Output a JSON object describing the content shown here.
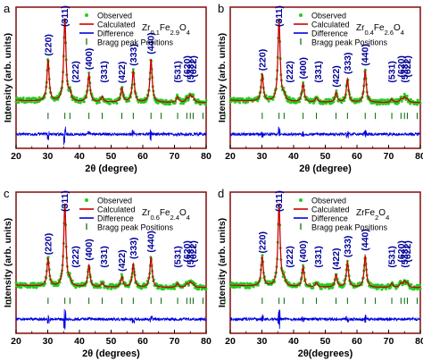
{
  "colors": {
    "frame": "#8b1a1a",
    "observed": "#22cc22",
    "calculated": "#cc0000",
    "difference": "#0000dd",
    "bragg": "#006600",
    "text": "#000000",
    "hkl": "#000099"
  },
  "legend_labels": [
    "Observed",
    "Calculated",
    "Difference",
    "Bragg peak Positions"
  ],
  "hkl_labels": [
    "(220)",
    "(311)",
    "(222)",
    "(400)",
    "(331)",
    "(422)",
    "(333)",
    "(440)",
    "(531)",
    "(620)",
    "(533)",
    "(622)"
  ],
  "chart_data": [
    {
      "type": "line",
      "panel_letter": "a",
      "title": "Zr0.1Fe2.9O4",
      "formula": {
        "zr": "0.1",
        "fe": "2.9",
        "o": "4"
      },
      "xlabel": "2θ (degree)",
      "ylabel": "Intensity (arb. units)",
      "xlim": [
        20,
        80
      ],
      "xticks": [
        20,
        30,
        40,
        50,
        60,
        70,
        80
      ],
      "peaks": [
        {
          "hkl": "(220)",
          "x": 30.1,
          "intensity": 0.5
        },
        {
          "hkl": "(311)",
          "x": 35.4,
          "intensity": 1.0
        },
        {
          "hkl": "(222)",
          "x": 37.0,
          "intensity": 0.1
        },
        {
          "hkl": "(400)",
          "x": 43.0,
          "intensity": 0.33
        },
        {
          "hkl": "(331)",
          "x": 47.2,
          "intensity": 0.07
        },
        {
          "hkl": "(422)",
          "x": 53.4,
          "intensity": 0.17
        },
        {
          "hkl": "(333)",
          "x": 57.0,
          "intensity": 0.38
        },
        {
          "hkl": "(440)",
          "x": 62.6,
          "intensity": 0.52
        },
        {
          "hkl": "(531)",
          "x": 71.0,
          "intensity": 0.07
        },
        {
          "hkl": "(620)",
          "x": 73.9,
          "intensity": 0.05
        },
        {
          "hkl": "(533)",
          "x": 75.0,
          "intensity": 0.08
        },
        {
          "hkl": "(622)",
          "x": 75.9,
          "intensity": 0.06
        }
      ]
    },
    {
      "type": "line",
      "panel_letter": "b",
      "title": "Zr0.4Fe2.6O4",
      "formula": {
        "zr": "0.4",
        "fe": "2.6",
        "o": "4"
      },
      "xlabel": "2θ (degree)",
      "ylabel": "Intensity (arb. units)",
      "xlim": [
        20,
        80
      ],
      "xticks": [
        20,
        30,
        40,
        50,
        60,
        70,
        80
      ],
      "peaks": [
        {
          "hkl": "(220)",
          "x": 30.1,
          "intensity": 0.32
        },
        {
          "hkl": "(311)",
          "x": 35.4,
          "intensity": 1.0
        },
        {
          "hkl": "(222)",
          "x": 37.0,
          "intensity": 0.07
        },
        {
          "hkl": "(400)",
          "x": 43.0,
          "intensity": 0.22
        },
        {
          "hkl": "(331)",
          "x": 47.2,
          "intensity": 0.05
        },
        {
          "hkl": "(422)",
          "x": 53.4,
          "intensity": 0.12
        },
        {
          "hkl": "(333)",
          "x": 57.0,
          "intensity": 0.28
        },
        {
          "hkl": "(440)",
          "x": 62.6,
          "intensity": 0.38
        },
        {
          "hkl": "(531)",
          "x": 71.0,
          "intensity": 0.04
        },
        {
          "hkl": "(620)",
          "x": 73.9,
          "intensity": 0.04
        },
        {
          "hkl": "(533)",
          "x": 75.0,
          "intensity": 0.06
        },
        {
          "hkl": "(622)",
          "x": 75.9,
          "intensity": 0.04
        }
      ]
    },
    {
      "type": "line",
      "panel_letter": "c",
      "title": "Zr0.6Fe2.4O4",
      "formula": {
        "zr": "0.6",
        "fe": "2.4",
        "o": "4"
      },
      "xlabel": "2θ (degrees)",
      "ylabel": "Intensity (arb. units)",
      "xlim": [
        20,
        80
      ],
      "xticks": [
        20,
        30,
        40,
        50,
        60,
        70,
        80
      ],
      "peaks": [
        {
          "hkl": "(220)",
          "x": 30.1,
          "intensity": 0.33
        },
        {
          "hkl": "(311)",
          "x": 35.4,
          "intensity": 1.0
        },
        {
          "hkl": "(222)",
          "x": 37.0,
          "intensity": 0.07
        },
        {
          "hkl": "(400)",
          "x": 43.0,
          "intensity": 0.26
        },
        {
          "hkl": "(331)",
          "x": 47.2,
          "intensity": 0.05
        },
        {
          "hkl": "(422)",
          "x": 53.4,
          "intensity": 0.13
        },
        {
          "hkl": "(333)",
          "x": 57.0,
          "intensity": 0.28
        },
        {
          "hkl": "(440)",
          "x": 62.6,
          "intensity": 0.36
        },
        {
          "hkl": "(531)",
          "x": 71.0,
          "intensity": 0.05
        },
        {
          "hkl": "(620)",
          "x": 73.9,
          "intensity": 0.04
        },
        {
          "hkl": "(533)",
          "x": 75.0,
          "intensity": 0.06
        },
        {
          "hkl": "(622)",
          "x": 75.9,
          "intensity": 0.04
        }
      ]
    },
    {
      "type": "line",
      "panel_letter": "d",
      "title": "ZrFe2O4",
      "formula": {
        "zr": "",
        "fe": "2",
        "o": "4"
      },
      "xlabel": "2θ(degrees)",
      "ylabel": "Intensity (arb. units)",
      "xlim": [
        20,
        80
      ],
      "xticks": [
        20,
        30,
        40,
        50,
        60,
        70,
        80
      ],
      "peaks": [
        {
          "hkl": "(220)",
          "x": 30.1,
          "intensity": 0.35
        },
        {
          "hkl": "(311)",
          "x": 35.4,
          "intensity": 1.0
        },
        {
          "hkl": "(222)",
          "x": 37.0,
          "intensity": 0.08
        },
        {
          "hkl": "(400)",
          "x": 43.0,
          "intensity": 0.24
        },
        {
          "hkl": "(331)",
          "x": 47.2,
          "intensity": 0.05
        },
        {
          "hkl": "(422)",
          "x": 53.4,
          "intensity": 0.15
        },
        {
          "hkl": "(333)",
          "x": 57.0,
          "intensity": 0.3
        },
        {
          "hkl": "(440)",
          "x": 62.6,
          "intensity": 0.38
        },
        {
          "hkl": "(531)",
          "x": 71.0,
          "intensity": 0.05
        },
        {
          "hkl": "(620)",
          "x": 73.9,
          "intensity": 0.05
        },
        {
          "hkl": "(533)",
          "x": 75.0,
          "intensity": 0.07
        },
        {
          "hkl": "(622)",
          "x": 75.9,
          "intensity": 0.05
        }
      ]
    }
  ]
}
